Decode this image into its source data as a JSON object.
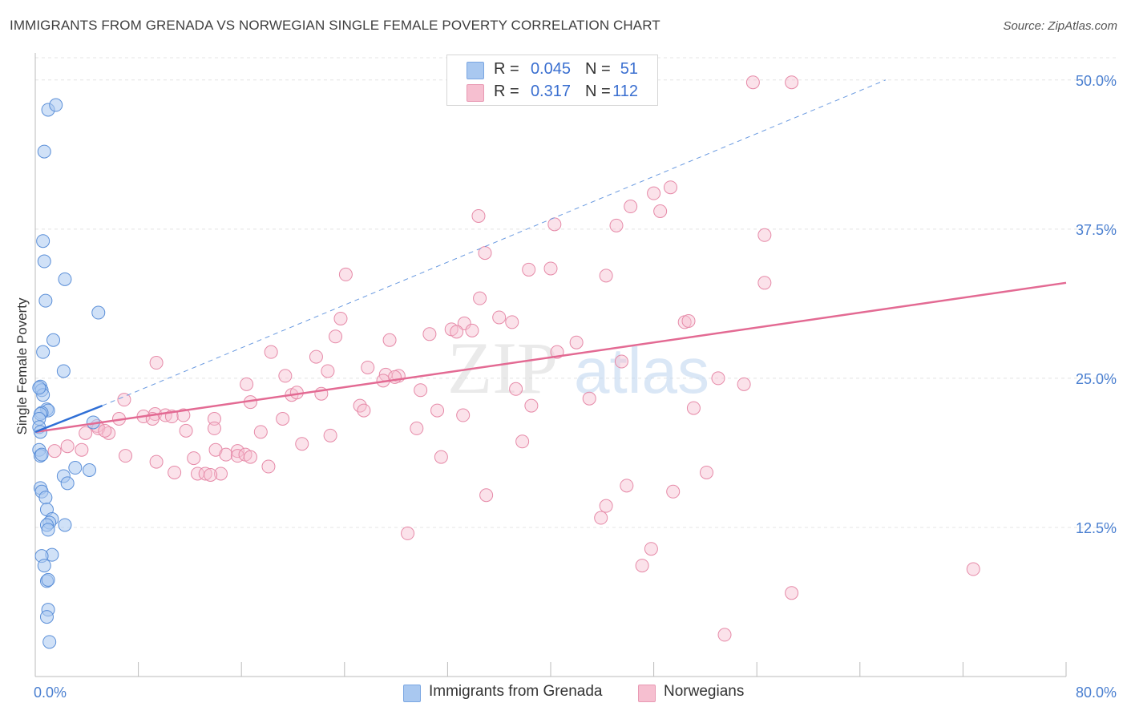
{
  "header": {
    "title": "IMMIGRANTS FROM GRENADA VS NORWEGIAN SINGLE FEMALE POVERTY CORRELATION CHART",
    "source": "Source: ZipAtlas.com"
  },
  "colors": {
    "blue_fill": "#a9c8f0",
    "blue_stroke": "#5b8fd8",
    "blue_line": "#2f6fd6",
    "pink_fill": "#f6bfd0",
    "pink_stroke": "#e68aa8",
    "pink_line": "#e36a93",
    "tick_label": "#4a7fd0",
    "grid": "#e4e4e4"
  },
  "legend_top": {
    "series": [
      {
        "r_label": "R =",
        "r_value": "0.045",
        "n_label": "N =",
        "n_value": "51"
      },
      {
        "r_label": "R =",
        "r_value": "0.317",
        "n_label": "N =",
        "n_value": "112"
      }
    ]
  },
  "watermark": {
    "zip": "ZIP",
    "atlas": "atlas"
  },
  "chart_data": {
    "type": "scatter",
    "title": "IMMIGRANTS FROM GRENADA VS NORWEGIAN SINGLE FEMALE POVERTY CORRELATION CHART",
    "xlabel": "",
    "ylabel": "Single Female Poverty",
    "xlim": [
      0,
      80
    ],
    "ylim": [
      0,
      52
    ],
    "x_tick_labels": [
      "0.0%",
      "80.0%"
    ],
    "y_ticks": [
      12.5,
      25.0,
      37.5,
      50.0
    ],
    "y_tick_labels": [
      "12.5%",
      "25.0%",
      "37.5%",
      "50.0%"
    ],
    "grid": true,
    "legend_position": "bottom",
    "series": [
      {
        "name": "Immigrants from Grenada",
        "color": "#a9c8f0",
        "trend": {
          "x": [
            0,
            5.2
          ],
          "y": [
            20.5,
            22.7
          ]
        },
        "trend_extended": {
          "x": [
            5.2,
            66
          ],
          "y": [
            22.7,
            50.0
          ]
        },
        "points": [
          [
            1.0,
            47.5
          ],
          [
            1.6,
            47.9
          ],
          [
            0.7,
            44.0
          ],
          [
            0.6,
            36.5
          ],
          [
            0.7,
            34.8
          ],
          [
            2.3,
            33.3
          ],
          [
            0.8,
            31.5
          ],
          [
            4.9,
            30.5
          ],
          [
            1.4,
            28.2
          ],
          [
            0.6,
            27.2
          ],
          [
            2.2,
            25.6
          ],
          [
            0.4,
            24.3
          ],
          [
            0.5,
            24.0
          ],
          [
            0.6,
            23.6
          ],
          [
            0.3,
            24.2
          ],
          [
            0.9,
            22.4
          ],
          [
            1.0,
            22.3
          ],
          [
            0.5,
            22.1
          ],
          [
            0.4,
            22.0
          ],
          [
            0.3,
            21.6
          ],
          [
            0.3,
            20.9
          ],
          [
            0.4,
            20.5
          ],
          [
            4.5,
            21.3
          ],
          [
            0.3,
            19.0
          ],
          [
            0.4,
            18.5
          ],
          [
            0.5,
            18.6
          ],
          [
            3.1,
            17.5
          ],
          [
            4.2,
            17.3
          ],
          [
            2.2,
            16.8
          ],
          [
            2.5,
            16.2
          ],
          [
            0.4,
            15.8
          ],
          [
            0.5,
            15.5
          ],
          [
            0.8,
            15.0
          ],
          [
            0.9,
            14.0
          ],
          [
            1.3,
            13.2
          ],
          [
            1.1,
            12.9
          ],
          [
            0.9,
            12.7
          ],
          [
            1.0,
            12.3
          ],
          [
            2.3,
            12.7
          ],
          [
            1.3,
            10.2
          ],
          [
            0.5,
            10.1
          ],
          [
            0.7,
            9.3
          ],
          [
            0.9,
            8.0
          ],
          [
            1.0,
            8.1
          ],
          [
            1.0,
            5.6
          ],
          [
            0.9,
            5.0
          ],
          [
            1.1,
            2.9
          ]
        ]
      },
      {
        "name": "Norwegians",
        "color": "#f6bfd0",
        "trend": {
          "x": [
            0,
            80
          ],
          "y": [
            20.5,
            33.0
          ]
        },
        "points": [
          [
            55.7,
            49.8
          ],
          [
            58.7,
            49.8
          ],
          [
            49.3,
            41.0
          ],
          [
            48.0,
            40.5
          ],
          [
            46.2,
            39.4
          ],
          [
            48.5,
            39.0
          ],
          [
            34.4,
            38.6
          ],
          [
            45.1,
            37.8
          ],
          [
            40.3,
            37.9
          ],
          [
            56.6,
            37.0
          ],
          [
            34.9,
            35.5
          ],
          [
            40.0,
            34.2
          ],
          [
            38.3,
            34.1
          ],
          [
            44.3,
            33.6
          ],
          [
            24.1,
            33.7
          ],
          [
            56.6,
            33.0
          ],
          [
            34.5,
            31.7
          ],
          [
            23.7,
            30.0
          ],
          [
            36.0,
            30.1
          ],
          [
            37.0,
            29.7
          ],
          [
            33.3,
            29.6
          ],
          [
            50.4,
            29.7
          ],
          [
            50.7,
            29.8
          ],
          [
            32.3,
            29.1
          ],
          [
            33.9,
            29.0
          ],
          [
            30.6,
            28.7
          ],
          [
            32.7,
            28.9
          ],
          [
            23.3,
            28.5
          ],
          [
            27.5,
            28.2
          ],
          [
            42.0,
            28.0
          ],
          [
            18.3,
            27.2
          ],
          [
            21.8,
            26.8
          ],
          [
            40.5,
            27.2
          ],
          [
            45.5,
            26.4
          ],
          [
            9.4,
            26.3
          ],
          [
            25.8,
            25.9
          ],
          [
            22.7,
            25.6
          ],
          [
            27.2,
            25.3
          ],
          [
            28.2,
            25.2
          ],
          [
            19.4,
            25.2
          ],
          [
            27.9,
            25.1
          ],
          [
            16.4,
            24.5
          ],
          [
            27.0,
            24.8
          ],
          [
            37.3,
            24.1
          ],
          [
            53.0,
            25.0
          ],
          [
            55.0,
            24.5
          ],
          [
            29.9,
            24.0
          ],
          [
            22.2,
            23.7
          ],
          [
            19.9,
            23.6
          ],
          [
            20.3,
            23.8
          ],
          [
            43.0,
            23.3
          ],
          [
            6.9,
            23.2
          ],
          [
            16.7,
            23.0
          ],
          [
            25.2,
            22.7
          ],
          [
            25.5,
            22.3
          ],
          [
            38.5,
            22.7
          ],
          [
            51.1,
            22.5
          ],
          [
            9.3,
            22.0
          ],
          [
            31.2,
            22.3
          ],
          [
            8.4,
            21.8
          ],
          [
            6.5,
            21.6
          ],
          [
            9.1,
            21.6
          ],
          [
            10.1,
            21.9
          ],
          [
            10.6,
            21.8
          ],
          [
            11.5,
            21.9
          ],
          [
            13.9,
            21.6
          ],
          [
            19.2,
            21.6
          ],
          [
            33.2,
            21.9
          ],
          [
            29.6,
            20.8
          ],
          [
            4.8,
            21.0
          ],
          [
            4.9,
            20.8
          ],
          [
            3.9,
            20.4
          ],
          [
            5.7,
            20.4
          ],
          [
            5.4,
            20.6
          ],
          [
            11.7,
            20.6
          ],
          [
            13.9,
            20.8
          ],
          [
            17.5,
            20.5
          ],
          [
            22.9,
            20.2
          ],
          [
            37.8,
            19.7
          ],
          [
            2.5,
            19.3
          ],
          [
            3.6,
            19.0
          ],
          [
            1.5,
            18.9
          ],
          [
            7.0,
            18.5
          ],
          [
            9.4,
            18.0
          ],
          [
            12.3,
            18.3
          ],
          [
            15.7,
            18.9
          ],
          [
            14.0,
            19.0
          ],
          [
            14.8,
            18.6
          ],
          [
            15.7,
            18.5
          ],
          [
            16.3,
            18.6
          ],
          [
            16.7,
            18.4
          ],
          [
            18.1,
            17.6
          ],
          [
            20.7,
            19.5
          ],
          [
            31.5,
            18.4
          ],
          [
            12.6,
            17.0
          ],
          [
            14.4,
            17.0
          ],
          [
            10.8,
            17.1
          ],
          [
            13.2,
            17.0
          ],
          [
            13.6,
            16.9
          ],
          [
            52.1,
            17.1
          ],
          [
            45.9,
            16.0
          ],
          [
            49.5,
            15.5
          ],
          [
            35.0,
            15.2
          ],
          [
            44.3,
            14.3
          ],
          [
            43.9,
            13.3
          ],
          [
            28.9,
            12.0
          ],
          [
            47.8,
            10.7
          ],
          [
            47.1,
            9.3
          ],
          [
            72.8,
            9.0
          ],
          [
            58.7,
            7.0
          ],
          [
            53.5,
            3.5
          ]
        ]
      }
    ]
  }
}
